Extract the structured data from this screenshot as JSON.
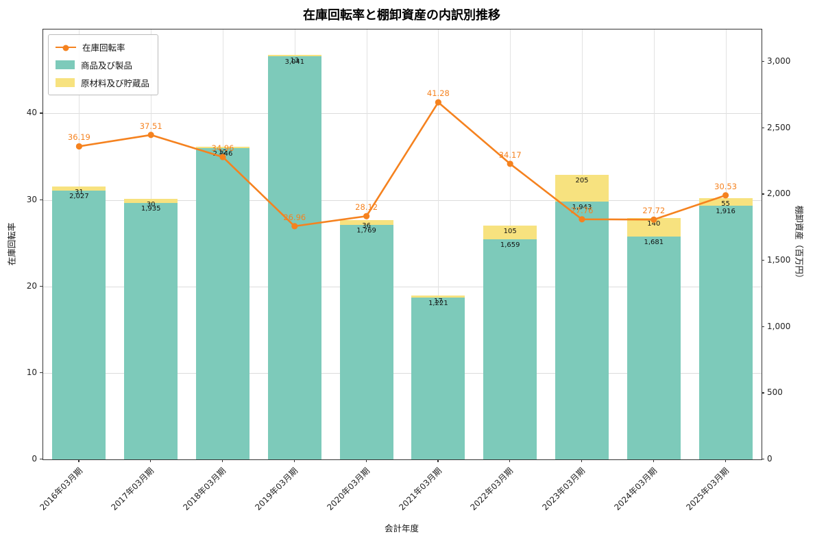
{
  "title": "在庫回転率と棚卸資産の内訳別推移",
  "x_axis_label": "会計年度",
  "left_axis": {
    "label": "在庫回転率",
    "ticks": [
      "0",
      "10",
      "20",
      "30",
      "40"
    ],
    "tick_values": [
      0,
      10,
      20,
      30,
      40
    ]
  },
  "right_axis": {
    "label": "棚卸資産（百万円）",
    "ticks": [
      "0",
      "500",
      "1,000",
      "1,500",
      "2,000",
      "2,500",
      "3,000"
    ],
    "tick_values": [
      0,
      500,
      1000,
      1500,
      2000,
      2500,
      3000
    ]
  },
  "legend": {
    "items": [
      {
        "label": "在庫回転率",
        "type": "line",
        "color": "#f5821f"
      },
      {
        "label": "商品及び製品",
        "type": "patch",
        "color": "#7dcaba"
      },
      {
        "label": "原材料及び貯蔵品",
        "type": "patch",
        "color": "#f7e27f"
      }
    ]
  },
  "chart_data": {
    "type": "combo-bar-line",
    "categories": [
      "2016年03月期",
      "2017年03月期",
      "2018年03月期",
      "2019年03月期",
      "2020年03月期",
      "2021年03月期",
      "2022年03月期",
      "2023年03月期",
      "2024年03月期",
      "2025年03月期"
    ],
    "series": [
      {
        "name": "在庫回転率",
        "chart": "line",
        "axis": "left",
        "color": "#f5821f",
        "values": [
          36.19,
          37.51,
          34.96,
          26.96,
          28.12,
          41.28,
          34.17,
          27.76,
          27.72,
          30.53
        ],
        "labels": [
          "36.19",
          "37.51",
          "34.96",
          "26.96",
          "28.12",
          "41.28",
          "34.17",
          "27.76",
          "27.72",
          "30.53"
        ]
      },
      {
        "name": "商品及び製品",
        "chart": "bar",
        "axis": "right",
        "stack": "inventory",
        "color": "#7dcaba",
        "values": [
          2027,
          1935,
          2346,
          3041,
          1769,
          1221,
          1659,
          1943,
          1681,
          1916
        ],
        "labels": [
          "2,027",
          "1,935",
          "2,346",
          "3,041",
          "1,769",
          "1,221",
          "1,659",
          "1,943",
          "1,681",
          "1,916"
        ]
      },
      {
        "name": "原材料及び貯蔵品",
        "chart": "bar",
        "axis": "right",
        "stack": "inventory",
        "color": "#f7e27f",
        "values": [
          31,
          30,
          12,
          13,
          36,
          17,
          105,
          205,
          140,
          55
        ],
        "labels": [
          "31",
          "30",
          "12",
          "13",
          "36",
          "17",
          "105",
          "205",
          "140",
          "55"
        ]
      }
    ],
    "left_ylim": [
      0,
      49.7
    ],
    "right_ylim": [
      0,
      3243
    ],
    "grid": true,
    "legend_position": "upper left"
  }
}
